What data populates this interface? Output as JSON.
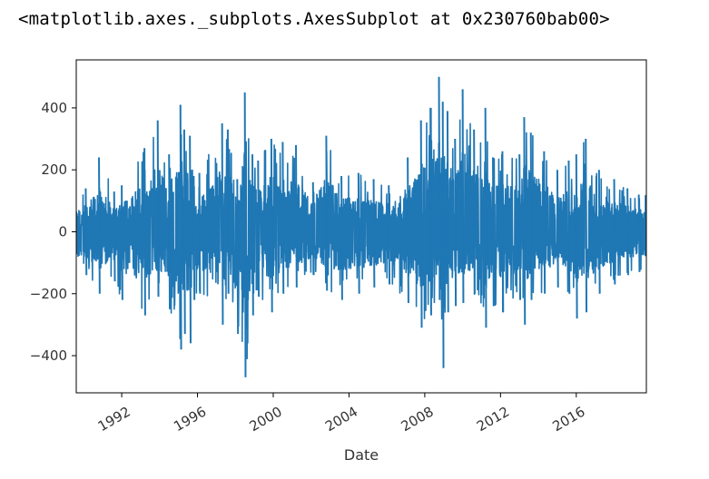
{
  "output": {
    "repr_text": "<matplotlib.axes._subplots.AxesSubplot at 0x230760bab00>"
  },
  "chart_data": {
    "type": "line",
    "title": "",
    "xlabel": "Date",
    "ylabel": "",
    "x_tick_labels": [
      "1992",
      "1996",
      "2000",
      "2004",
      "2008",
      "2012",
      "2016"
    ],
    "x_tick_values": [
      1992,
      1996,
      2000,
      2004,
      2008,
      2012,
      2016
    ],
    "y_tick_labels": [
      "400",
      "200",
      "0",
      "−200",
      "−400"
    ],
    "y_tick_values": [
      400,
      200,
      0,
      -200,
      -400
    ],
    "xlim": [
      1989.6,
      2019.7
    ],
    "ylim": [
      -520,
      555
    ],
    "grid": false,
    "legend": "none",
    "line_color": "#1f77b4",
    "series": [
      {
        "values_description_free": true,
        "x": [
          1990.1,
          1990.8,
          1991.6,
          1992.0,
          1993.2,
          1993.9,
          1994.5,
          1995.1,
          1995.3,
          1995.6,
          1995.8,
          1996.1,
          1997.3,
          1997.6,
          1998.1,
          1998.5,
          1998.9,
          1999.2,
          1999.9,
          2000.5,
          2001.2,
          2002.1,
          2002.8,
          2003.6,
          2004.5,
          2005.3,
          2006.1,
          2007.1,
          2007.8,
          2008.3,
          2008.75,
          2008.95,
          2009.2,
          2009.6,
          2010.0,
          2010.6,
          2011.2,
          2011.6,
          2012.1,
          2013.0,
          2013.25,
          2013.6,
          2014.3,
          2015.0,
          2015.6,
          2016.0,
          2016.5,
          2017.2,
          2018.0,
          2018.7,
          2019.3
        ],
        "y_max": [
          140,
          240,
          130,
          150,
          270,
          360,
          250,
          410,
          330,
          310,
          180,
          190,
          350,
          330,
          170,
          450,
          250,
          230,
          300,
          290,
          280,
          160,
          310,
          180,
          190,
          170,
          150,
          240,
          360,
          400,
          500,
          420,
          390,
          300,
          460,
          330,
          400,
          240,
          260,
          250,
          370,
          320,
          260,
          200,
          230,
          250,
          300,
          200,
          170,
          140,
          120
        ],
        "y_min": [
          -140,
          -200,
          -160,
          -220,
          -270,
          -210,
          -250,
          -380,
          -330,
          -360,
          -220,
          -200,
          -300,
          -200,
          -330,
          -470,
          -270,
          -210,
          -260,
          -200,
          -180,
          -140,
          -190,
          -220,
          -200,
          -180,
          -170,
          -230,
          -310,
          -270,
          -220,
          -440,
          -260,
          -240,
          -230,
          -200,
          -310,
          -240,
          -260,
          -220,
          -300,
          -220,
          -200,
          -180,
          -200,
          -280,
          -260,
          -200,
          -170,
          -140,
          -130
        ]
      }
    ]
  }
}
